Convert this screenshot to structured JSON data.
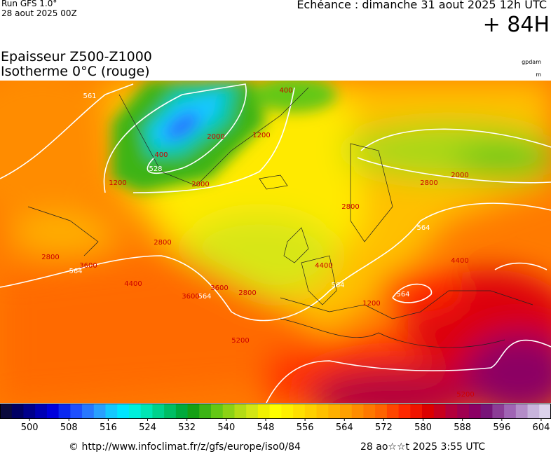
{
  "header": {
    "run": "Run GFS 1.0°",
    "run_date": "28 aout 2025 00Z",
    "valid": "Echéance : dimanche 31 aout 2025 12h UTC",
    "lead": "+ 84H",
    "title": "Epaisseur Z500-Z1000",
    "subtitle": "Isotherme 0°C (rouge)",
    "unit1": "gpdam",
    "unit2": "m"
  },
  "map": {
    "contour_labels": [
      "561",
      "528",
      "564",
      "564",
      "564",
      "564",
      "564",
      "3600",
      "400",
      "1200",
      "1200",
      "2000",
      "2000",
      "2800",
      "2800",
      "2800",
      "2800",
      "3600",
      "3600",
      "4400",
      "4400",
      "4400",
      "5200",
      "5200",
      "2000",
      "2800",
      "1200",
      "400"
    ]
  },
  "legend": {
    "lim": [
      494,
      606
    ],
    "ticks": [
      500,
      508,
      516,
      524,
      532,
      540,
      548,
      556,
      564,
      572,
      580,
      588,
      596,
      604
    ],
    "colors": [
      "#0a0a3c",
      "#000064",
      "#00008c",
      "#0000b4",
      "#0000dc",
      "#0a28f0",
      "#1e50ff",
      "#2878ff",
      "#28a0ff",
      "#14c8ff",
      "#00e6ff",
      "#00f0dc",
      "#00e6b4",
      "#00d28c",
      "#00be64",
      "#00aa3c",
      "#14a014",
      "#3cb414",
      "#64c814",
      "#8cd214",
      "#b4dc14",
      "#d2e614",
      "#f0f000",
      "#ffff00",
      "#fff000",
      "#ffe000",
      "#ffd000",
      "#ffc000",
      "#ffb000",
      "#ffa000",
      "#ff8c00",
      "#ff7800",
      "#ff6400",
      "#ff4600",
      "#ff2800",
      "#f01400",
      "#dc0000",
      "#c8001e",
      "#b4003c",
      "#a00050",
      "#8c0064",
      "#781478",
      "#8c3c96",
      "#a064b4",
      "#b48cc8",
      "#c8b4dc",
      "#dcd2ec"
    ]
  },
  "footer": {
    "source": "© http://www.infoclimat.fr/z/gfs/europe/iso0/84",
    "generated": "28 ao☆☆t 2025  3:55 UTC"
  }
}
